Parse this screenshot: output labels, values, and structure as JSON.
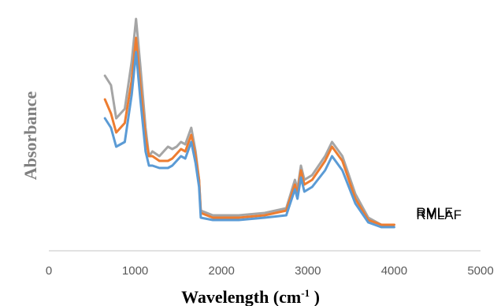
{
  "chart_data": {
    "type": "line",
    "title": "",
    "xlabel": "Wavelength (cm",
    "xlabel_sup": "-1",
    "xlabel_tail": " )",
    "ylabel": "Absorbance",
    "xlim": [
      0,
      5000
    ],
    "x_ticks": [
      "0",
      "1000",
      "2000",
      "3000",
      "4000",
      "5000"
    ],
    "y_ticks": false,
    "grid": false,
    "legend": "inline-right",
    "series": [
      {
        "name": "RML",
        "color": "#a5a5a5",
        "points": [
          [
            650,
            0.74
          ],
          [
            720,
            0.7
          ],
          [
            780,
            0.56
          ],
          [
            880,
            0.6
          ],
          [
            960,
            0.8
          ],
          [
            1010,
            0.98
          ],
          [
            1060,
            0.78
          ],
          [
            1120,
            0.52
          ],
          [
            1160,
            0.4
          ],
          [
            1200,
            0.42
          ],
          [
            1280,
            0.4
          ],
          [
            1380,
            0.44
          ],
          [
            1430,
            0.43
          ],
          [
            1480,
            0.44
          ],
          [
            1530,
            0.46
          ],
          [
            1580,
            0.45
          ],
          [
            1650,
            0.52
          ],
          [
            1700,
            0.42
          ],
          [
            1740,
            0.3
          ],
          [
            1760,
            0.17
          ],
          [
            1900,
            0.15
          ],
          [
            2200,
            0.15
          ],
          [
            2500,
            0.16
          ],
          [
            2750,
            0.18
          ],
          [
            2850,
            0.3
          ],
          [
            2880,
            0.26
          ],
          [
            2920,
            0.36
          ],
          [
            2960,
            0.3
          ],
          [
            3050,
            0.32
          ],
          [
            3200,
            0.4
          ],
          [
            3280,
            0.46
          ],
          [
            3400,
            0.4
          ],
          [
            3550,
            0.24
          ],
          [
            3700,
            0.14
          ],
          [
            3850,
            0.11
          ],
          [
            4000,
            0.11
          ]
        ]
      },
      {
        "name": "RMLF",
        "color": "#ed7d31",
        "points": [
          [
            650,
            0.64
          ],
          [
            720,
            0.58
          ],
          [
            780,
            0.5
          ],
          [
            880,
            0.54
          ],
          [
            960,
            0.72
          ],
          [
            1010,
            0.9
          ],
          [
            1060,
            0.7
          ],
          [
            1120,
            0.48
          ],
          [
            1160,
            0.4
          ],
          [
            1200,
            0.4
          ],
          [
            1280,
            0.38
          ],
          [
            1380,
            0.38
          ],
          [
            1430,
            0.39
          ],
          [
            1480,
            0.41
          ],
          [
            1530,
            0.43
          ],
          [
            1580,
            0.42
          ],
          [
            1650,
            0.49
          ],
          [
            1700,
            0.4
          ],
          [
            1740,
            0.3
          ],
          [
            1760,
            0.16
          ],
          [
            1900,
            0.14
          ],
          [
            2200,
            0.14
          ],
          [
            2500,
            0.15
          ],
          [
            2750,
            0.17
          ],
          [
            2850,
            0.28
          ],
          [
            2880,
            0.24
          ],
          [
            2920,
            0.34
          ],
          [
            2960,
            0.28
          ],
          [
            3050,
            0.3
          ],
          [
            3200,
            0.38
          ],
          [
            3280,
            0.44
          ],
          [
            3400,
            0.38
          ],
          [
            3550,
            0.22
          ],
          [
            3700,
            0.13
          ],
          [
            3850,
            0.11
          ],
          [
            4000,
            0.11
          ]
        ]
      },
      {
        "name": "RMLAF",
        "color": "#5b9bd5",
        "points": [
          [
            650,
            0.56
          ],
          [
            720,
            0.52
          ],
          [
            780,
            0.44
          ],
          [
            880,
            0.46
          ],
          [
            960,
            0.66
          ],
          [
            1010,
            0.84
          ],
          [
            1060,
            0.64
          ],
          [
            1120,
            0.42
          ],
          [
            1160,
            0.36
          ],
          [
            1200,
            0.36
          ],
          [
            1280,
            0.35
          ],
          [
            1380,
            0.35
          ],
          [
            1430,
            0.36
          ],
          [
            1480,
            0.38
          ],
          [
            1530,
            0.4
          ],
          [
            1580,
            0.39
          ],
          [
            1650,
            0.46
          ],
          [
            1700,
            0.37
          ],
          [
            1740,
            0.27
          ],
          [
            1760,
            0.14
          ],
          [
            1900,
            0.13
          ],
          [
            2200,
            0.13
          ],
          [
            2500,
            0.14
          ],
          [
            2750,
            0.15
          ],
          [
            2850,
            0.26
          ],
          [
            2880,
            0.22
          ],
          [
            2920,
            0.31
          ],
          [
            2960,
            0.25
          ],
          [
            3050,
            0.27
          ],
          [
            3200,
            0.34
          ],
          [
            3280,
            0.4
          ],
          [
            3400,
            0.34
          ],
          [
            3550,
            0.2
          ],
          [
            3700,
            0.12
          ],
          [
            3850,
            0.1
          ],
          [
            4000,
            0.1
          ]
        ]
      }
    ]
  }
}
